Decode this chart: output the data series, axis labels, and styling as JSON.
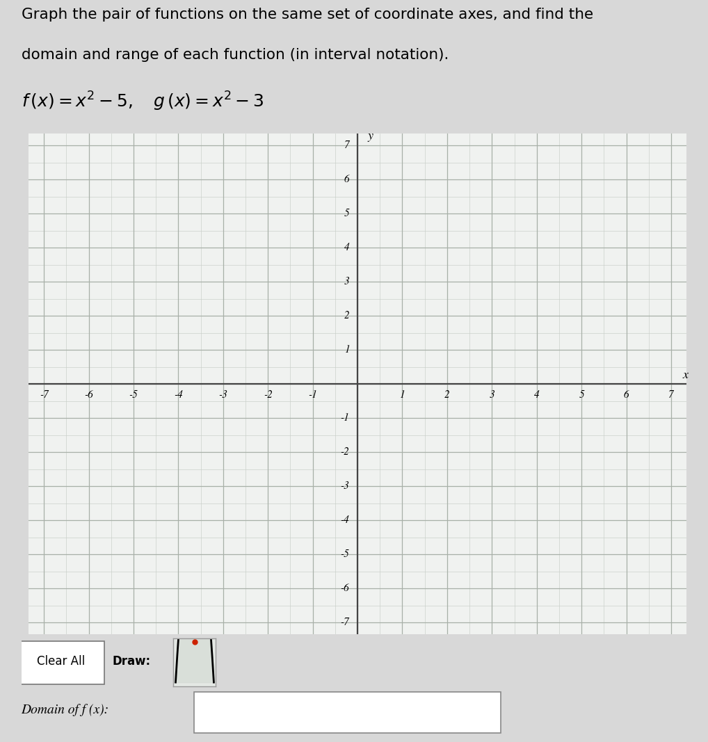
{
  "title_line1": "Graph the pair of functions on the same set of coordinate axes, and find the",
  "title_line2": "domain and range of each function (in interval notation).",
  "xmin": -7,
  "xmax": 7,
  "ymin": -7,
  "ymax": 7,
  "x_label": "x",
  "y_label": "y",
  "grid_color": "#c8cec8",
  "axis_color": "#444444",
  "bg_color": "#f0f2f0",
  "tick_labels_x": [
    -7,
    -6,
    -5,
    -4,
    -3,
    -2,
    -1,
    1,
    2,
    3,
    4,
    5,
    6,
    7
  ],
  "tick_labels_y": [
    -7,
    -6,
    -5,
    -4,
    -3,
    -2,
    -1,
    1,
    2,
    3,
    4,
    5,
    6,
    7
  ],
  "button_clear_text": "Clear All",
  "button_draw_text": "Draw:",
  "domain_label": "Domain of f (x):",
  "page_bg": "#d8d8d8",
  "formula_line": "f (x) = x² – 5,  g (x) = x² – 3"
}
